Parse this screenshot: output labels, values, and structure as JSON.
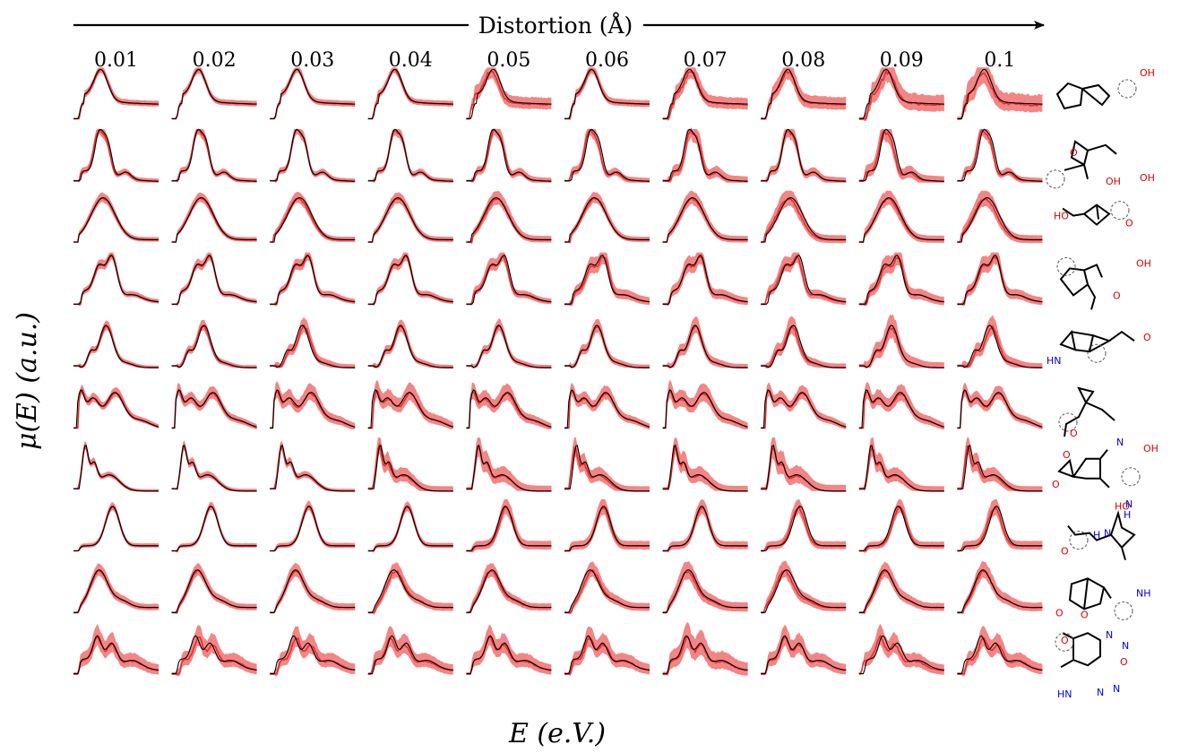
{
  "chart_data": {
    "type": "line",
    "title": "",
    "top_axis_label": "Distortion (Å)",
    "columns": [
      "0.01",
      "0.02",
      "0.03",
      "0.04",
      "0.05",
      "0.06",
      "0.07",
      "0.08",
      "0.09",
      "0.1"
    ],
    "ylabel": "μ(E) (a.u.)",
    "xlabel": "E (e.V.)",
    "rows": 10,
    "grid": false,
    "legend": "none",
    "colors": {
      "band": "#f07070",
      "mean": "#e03030",
      "reference": "#000000"
    },
    "series": [
      {
        "row": 1,
        "shape": "single-sharp",
        "noise_by_column": [
          0.15,
          0.15,
          0.15,
          0.15,
          0.45,
          0.2,
          0.45,
          0.5,
          0.7,
          0.75
        ]
      },
      {
        "row": 2,
        "shape": "double-sharp",
        "noise_by_column": [
          0.25,
          0.25,
          0.25,
          0.25,
          0.35,
          0.35,
          0.55,
          0.4,
          0.6,
          0.35
        ]
      },
      {
        "row": 3,
        "shape": "broad",
        "noise_by_column": [
          0.2,
          0.2,
          0.25,
          0.25,
          0.35,
          0.25,
          0.35,
          0.45,
          0.4,
          0.45
        ]
      },
      {
        "row": 4,
        "shape": "shoulder",
        "noise_by_column": [
          0.2,
          0.2,
          0.25,
          0.25,
          0.3,
          0.45,
          0.45,
          0.4,
          0.5,
          0.45
        ]
      },
      {
        "row": 5,
        "shape": "pre-edge-shoulder",
        "noise_by_column": [
          0.2,
          0.25,
          0.4,
          0.3,
          0.3,
          0.35,
          0.45,
          0.5,
          0.7,
          0.55
        ]
      },
      {
        "row": 6,
        "shape": "two-hump",
        "noise_by_column": [
          0.2,
          0.3,
          0.45,
          0.5,
          0.45,
          0.35,
          0.5,
          0.35,
          0.45,
          0.35
        ]
      },
      {
        "row": 7,
        "shape": "sharp-edge-broad",
        "noise_by_column": [
          0.15,
          0.2,
          0.2,
          0.6,
          0.7,
          0.6,
          0.65,
          0.8,
          0.6,
          0.6
        ]
      },
      {
        "row": 8,
        "shape": "late-peak",
        "noise_by_column": [
          0.15,
          0.15,
          0.2,
          0.2,
          0.45,
          0.45,
          0.4,
          0.4,
          0.35,
          0.45
        ]
      },
      {
        "row": 9,
        "shape": "early-broad",
        "noise_by_column": [
          0.3,
          0.3,
          0.35,
          0.4,
          0.35,
          0.4,
          0.5,
          0.45,
          0.4,
          0.45
        ]
      },
      {
        "row": 10,
        "shape": "multi-peak",
        "noise_by_column": [
          0.6,
          0.6,
          0.6,
          0.6,
          0.6,
          0.6,
          0.8,
          0.6,
          0.6,
          0.6
        ]
      }
    ]
  },
  "molecules": [
    {
      "row": 1,
      "atoms": [
        {
          "text": "OH",
          "color": "#e00000"
        }
      ]
    },
    {
      "row": 2,
      "atoms": [
        {
          "text": "O",
          "color": "#e00000"
        },
        {
          "text": "OH",
          "color": "#e00000"
        },
        {
          "text": "OH",
          "color": "#e00000"
        }
      ]
    },
    {
      "row": 3,
      "atoms": [
        {
          "text": "HO",
          "color": "#e00000"
        },
        {
          "text": "O",
          "color": "#e00000"
        }
      ]
    },
    {
      "row": 4,
      "atoms": [
        {
          "text": "OH",
          "color": "#e00000"
        },
        {
          "text": "O",
          "color": "#e00000"
        }
      ]
    },
    {
      "row": 5,
      "atoms": [
        {
          "text": "HN",
          "color": "#0000e0"
        },
        {
          "text": "O",
          "color": "#e00000"
        }
      ]
    },
    {
      "row": 6,
      "atoms": [
        {
          "text": "O",
          "color": "#e00000"
        },
        {
          "text": "O",
          "color": "#e00000"
        },
        {
          "text": "N",
          "color": "#0000e0"
        }
      ]
    },
    {
      "row": 7,
      "atoms": [
        {
          "text": "OH",
          "color": "#e00000"
        },
        {
          "text": "O",
          "color": "#e00000"
        },
        {
          "text": "N",
          "color": "#0000e0"
        },
        {
          "text": "H",
          "color": "#0000e0"
        }
      ]
    },
    {
      "row": 8,
      "atoms": [
        {
          "text": "HO",
          "color": "#e00000"
        },
        {
          "text": "O",
          "color": "#e00000"
        },
        {
          "text": "H",
          "color": "#0000e0"
        },
        {
          "text": "N",
          "color": "#0000e0"
        }
      ]
    },
    {
      "row": 9,
      "atoms": [
        {
          "text": "NH",
          "color": "#0000e0"
        },
        {
          "text": "O",
          "color": "#e00000"
        },
        {
          "text": "O",
          "color": "#e00000"
        }
      ]
    },
    {
      "row": 10,
      "atoms": [
        {
          "text": "O",
          "color": "#e00000"
        },
        {
          "text": "N",
          "color": "#0000e0"
        },
        {
          "text": "N",
          "color": "#0000e0"
        },
        {
          "text": "O",
          "color": "#e00000"
        },
        {
          "text": "N",
          "color": "#0000e0"
        },
        {
          "text": "N",
          "color": "#0000e0"
        },
        {
          "text": "HN",
          "color": "#0000e0"
        }
      ]
    }
  ]
}
